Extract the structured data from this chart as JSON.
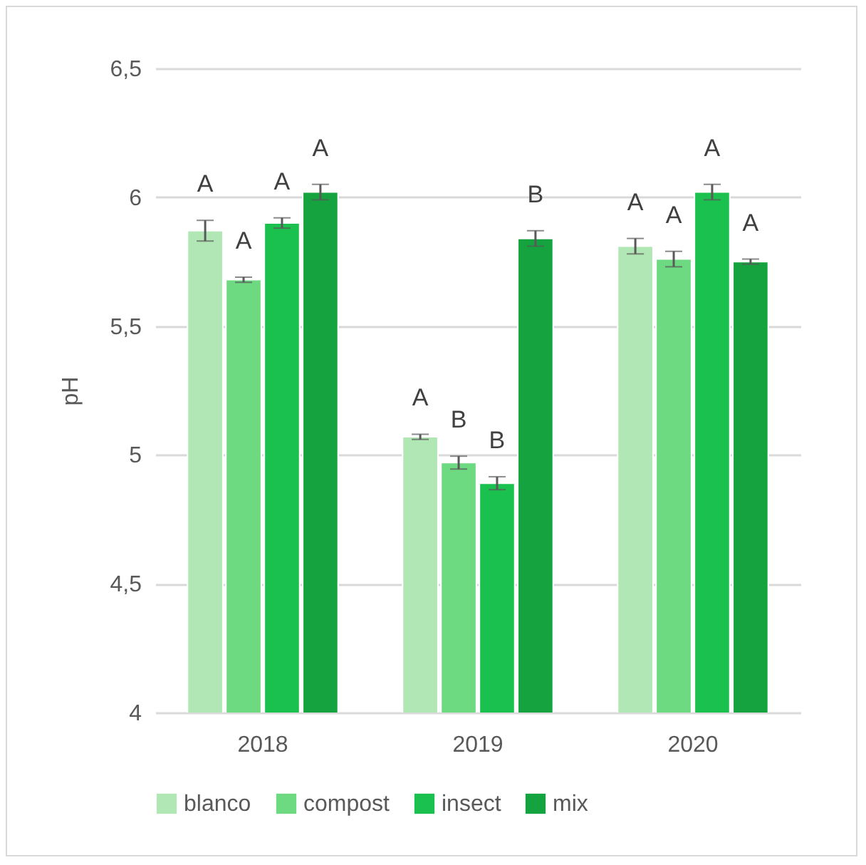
{
  "chart_data": {
    "type": "bar",
    "ylabel": "pH",
    "categories": [
      "2018",
      "2019",
      "2020"
    ],
    "ylim": [
      4,
      6.5
    ],
    "yticks": [
      4,
      {
        "value": 4.5,
        "label": "4,5"
      },
      5,
      {
        "value": 5.5,
        "label": "5,5"
      },
      6,
      {
        "value": 6.5,
        "label": "6,5"
      }
    ],
    "grid": "y",
    "legend": "bottom",
    "series": [
      {
        "name": "blanco",
        "color": "#b1e6b5",
        "values": [
          5.87,
          5.07,
          5.81
        ],
        "errors": [
          0.04,
          0.01,
          0.03
        ],
        "value_labels": [
          "A",
          "A",
          "A"
        ]
      },
      {
        "name": "compost",
        "color": "#6dd981",
        "values": [
          5.68,
          4.97,
          5.76
        ],
        "errors": [
          0.01,
          0.025,
          0.03
        ],
        "value_labels": [
          "A",
          "B",
          "A"
        ]
      },
      {
        "name": "insect",
        "color": "#1bc14e",
        "values": [
          5.9,
          4.89,
          6.02
        ],
        "errors": [
          0.02,
          0.025,
          0.03
        ],
        "value_labels": [
          "A",
          "B",
          "A"
        ]
      },
      {
        "name": "mix",
        "color": "#15a33f",
        "values": [
          6.02,
          5.84,
          5.75
        ],
        "errors": [
          0.03,
          0.03,
          0.01
        ],
        "value_labels": [
          "A",
          "B",
          "A"
        ]
      }
    ]
  }
}
